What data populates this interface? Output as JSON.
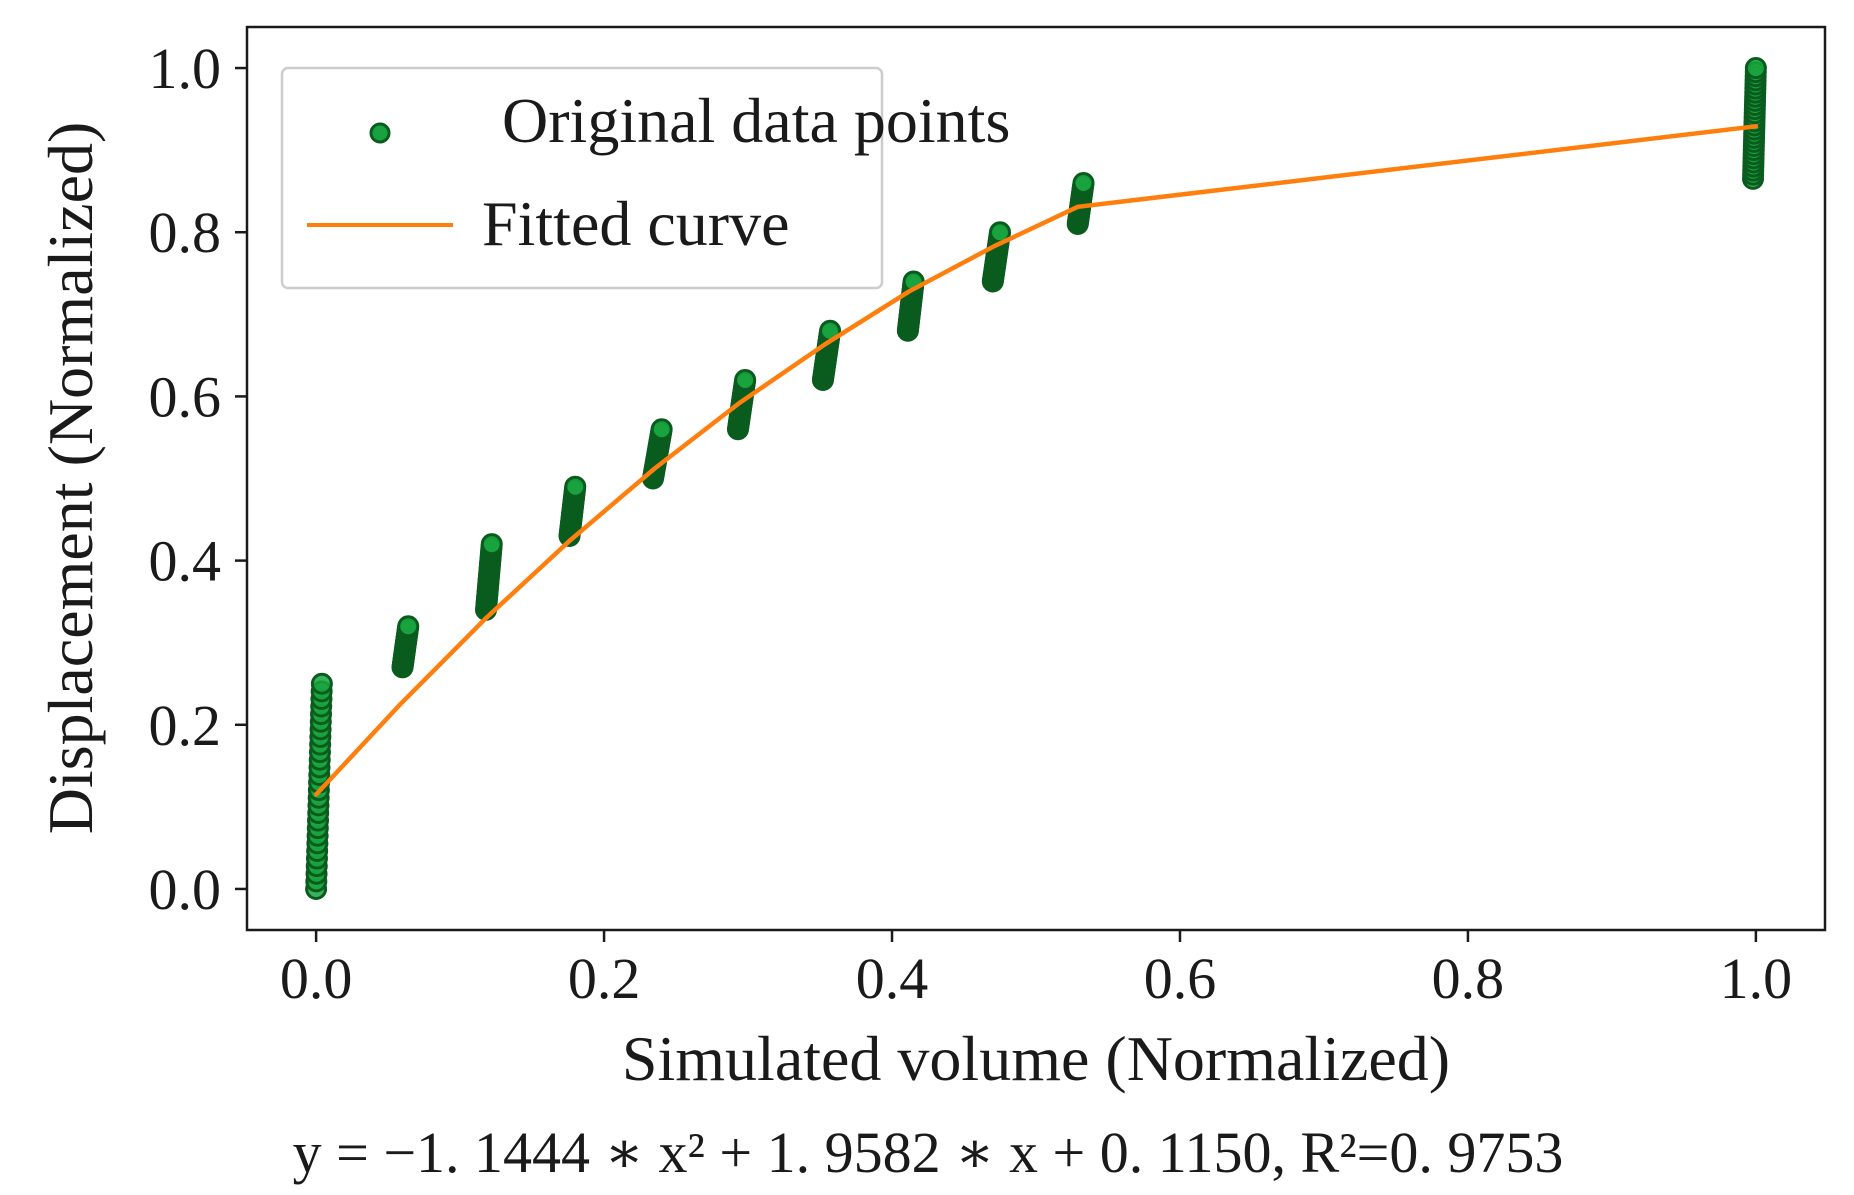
{
  "chart_data": {
    "type": "scatter",
    "title": "",
    "xlabel": "Simulated volume (Normalized)",
    "ylabel": "Displacement (Normalized)",
    "xlim": [
      -0.048,
      1.048
    ],
    "ylim": [
      -0.05,
      1.05
    ],
    "xticks": [
      0.0,
      0.2,
      0.4,
      0.6,
      0.8,
      1.0
    ],
    "yticks": [
      0.0,
      0.2,
      0.4,
      0.6,
      0.8,
      1.0
    ],
    "xtick_labels": [
      "0.0",
      "0.2",
      "0.4",
      "0.6",
      "0.8",
      "1.0"
    ],
    "ytick_labels": [
      "0.0",
      "0.2",
      "0.4",
      "0.6",
      "0.8",
      "1.0"
    ],
    "legend": {
      "placement": "top-left",
      "entries": [
        {
          "label": "Original data points",
          "kind": "marker",
          "color": "#0b7a2a"
        },
        {
          "label": "Fitted curve",
          "kind": "line",
          "color": "#ff7f0e"
        }
      ]
    },
    "series": [
      {
        "name": "Original data points",
        "kind": "scatter",
        "color": "#0b7a2a",
        "edge_color": "#0a5c1e",
        "clusters": [
          {
            "x": [
              0.0,
              0.004
            ],
            "y": [
              0.0,
              0.25
            ]
          },
          {
            "x": [
              0.06,
              0.064
            ],
            "y": [
              0.27,
              0.32
            ]
          },
          {
            "x": [
              0.118,
              0.122
            ],
            "y": [
              0.34,
              0.42
            ]
          },
          {
            "x": [
              0.176,
              0.18
            ],
            "y": [
              0.43,
              0.49
            ]
          },
          {
            "x": [
              0.234,
              0.24
            ],
            "y": [
              0.5,
              0.56
            ]
          },
          {
            "x": [
              0.293,
              0.298
            ],
            "y": [
              0.56,
              0.62
            ]
          },
          {
            "x": [
              0.352,
              0.357
            ],
            "y": [
              0.62,
              0.68
            ]
          },
          {
            "x": [
              0.411,
              0.415
            ],
            "y": [
              0.68,
              0.74
            ]
          },
          {
            "x": [
              0.47,
              0.475
            ],
            "y": [
              0.74,
              0.8
            ]
          },
          {
            "x": [
              0.529,
              0.533
            ],
            "y": [
              0.81,
              0.86
            ]
          },
          {
            "x": [
              0.998,
              1.0
            ],
            "y": [
              0.865,
              1.0
            ]
          }
        ]
      },
      {
        "name": "Fitted curve",
        "kind": "line",
        "color": "#ff7f0e",
        "x": [
          0.0,
          0.059,
          0.118,
          0.176,
          0.235,
          0.294,
          0.353,
          0.412,
          0.471,
          0.529,
          1.0
        ],
        "y": [
          0.115,
          0.226,
          0.33,
          0.424,
          0.512,
          0.592,
          0.663,
          0.728,
          0.783,
          0.831,
          0.929
        ]
      }
    ],
    "equation": "y = −1. 1444 ∗ x² + 1. 9582 ∗ x + 0. 1150, R²=0. 9753",
    "grid": false
  }
}
